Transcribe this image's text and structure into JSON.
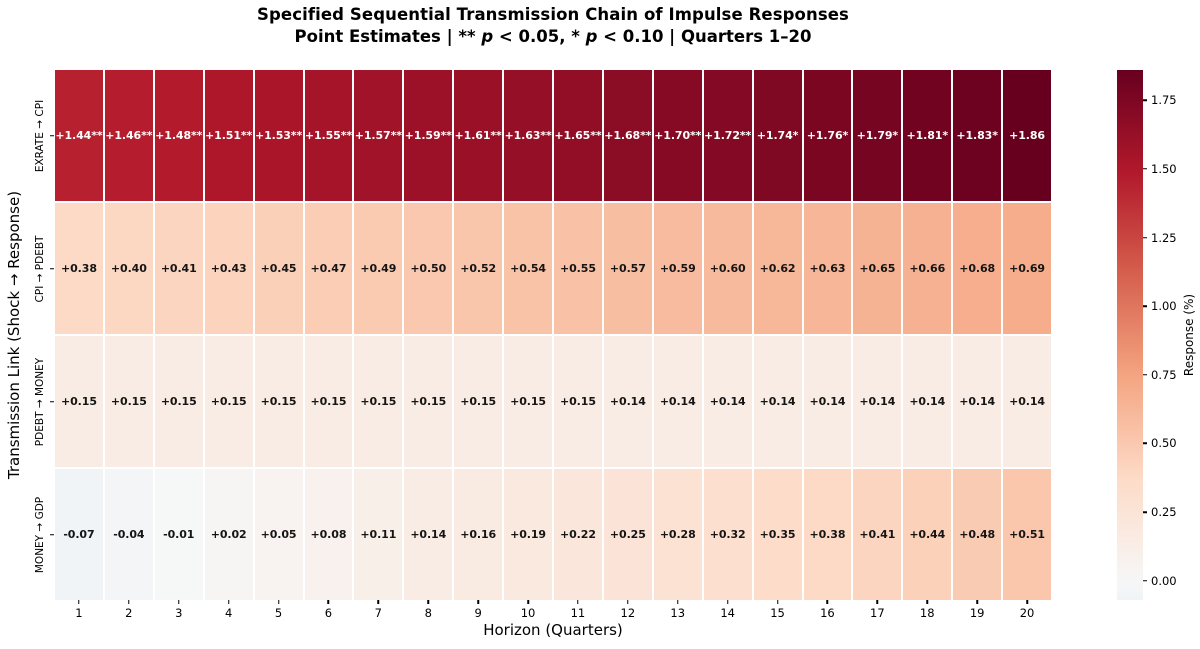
{
  "chart_data": {
    "type": "heatmap",
    "title": "Specified Sequential Transmission Chain of Impulse Responses",
    "subtitle_segments": [
      {
        "text": "Point Estimates | ** ",
        "italic": false
      },
      {
        "text": "p",
        "italic": true
      },
      {
        "text": " < 0.05, * ",
        "italic": false
      },
      {
        "text": "p",
        "italic": true
      },
      {
        "text": " < 0.10 | Quarters 1–20",
        "italic": false
      }
    ],
    "xlabel": "Horizon (Quarters)",
    "ylabel": "Transmission Link (Shock → Response)",
    "x_ticks": [
      "1",
      "2",
      "3",
      "4",
      "5",
      "6",
      "7",
      "8",
      "9",
      "10",
      "11",
      "12",
      "13",
      "14",
      "15",
      "16",
      "17",
      "18",
      "19",
      "20"
    ],
    "rows": [
      {
        "label": "EXRATE → CPI",
        "values": [
          1.44,
          1.46,
          1.48,
          1.51,
          1.53,
          1.55,
          1.57,
          1.59,
          1.61,
          1.63,
          1.65,
          1.68,
          1.7,
          1.72,
          1.74,
          1.76,
          1.79,
          1.81,
          1.83,
          1.86
        ],
        "cell_labels": [
          "+1.44**",
          "+1.46**",
          "+1.48**",
          "+1.51**",
          "+1.53**",
          "+1.55**",
          "+1.57**",
          "+1.59**",
          "+1.61**",
          "+1.63**",
          "+1.65**",
          "+1.68**",
          "+1.70**",
          "+1.72**",
          "+1.74*",
          "+1.76*",
          "+1.79*",
          "+1.81*",
          "+1.83*",
          "+1.86"
        ]
      },
      {
        "label": "CPI → PDEBT",
        "values": [
          0.38,
          0.4,
          0.41,
          0.43,
          0.45,
          0.47,
          0.49,
          0.5,
          0.52,
          0.54,
          0.55,
          0.57,
          0.59,
          0.6,
          0.62,
          0.63,
          0.65,
          0.66,
          0.68,
          0.69
        ],
        "cell_labels": [
          "+0.38",
          "+0.40",
          "+0.41",
          "+0.43",
          "+0.45",
          "+0.47",
          "+0.49",
          "+0.50",
          "+0.52",
          "+0.54",
          "+0.55",
          "+0.57",
          "+0.59",
          "+0.60",
          "+0.62",
          "+0.63",
          "+0.65",
          "+0.66",
          "+0.68",
          "+0.69"
        ]
      },
      {
        "label": "PDEBT → MONEY",
        "values": [
          0.15,
          0.15,
          0.15,
          0.15,
          0.15,
          0.15,
          0.15,
          0.15,
          0.15,
          0.15,
          0.15,
          0.14,
          0.14,
          0.14,
          0.14,
          0.14,
          0.14,
          0.14,
          0.14,
          0.14
        ],
        "cell_labels": [
          "+0.15",
          "+0.15",
          "+0.15",
          "+0.15",
          "+0.15",
          "+0.15",
          "+0.15",
          "+0.15",
          "+0.15",
          "+0.15",
          "+0.15",
          "+0.14",
          "+0.14",
          "+0.14",
          "+0.14",
          "+0.14",
          "+0.14",
          "+0.14",
          "+0.14",
          "+0.14"
        ]
      },
      {
        "label": "MONEY → GDP",
        "values": [
          -0.07,
          -0.04,
          -0.01,
          0.02,
          0.05,
          0.08,
          0.11,
          0.14,
          0.16,
          0.19,
          0.22,
          0.25,
          0.28,
          0.32,
          0.35,
          0.38,
          0.41,
          0.44,
          0.48,
          0.51
        ],
        "cell_labels": [
          "-0.07",
          "-0.04",
          "-0.01",
          "+0.02",
          "+0.05",
          "+0.08",
          "+0.11",
          "+0.14",
          "+0.16",
          "+0.19",
          "+0.22",
          "+0.25",
          "+0.28",
          "+0.32",
          "+0.35",
          "+0.38",
          "+0.41",
          "+0.44",
          "+0.48",
          "+0.51"
        ]
      }
    ],
    "colorbar": {
      "label": "Response (%)",
      "tick_labels": [
        "1.75",
        "1.50",
        "1.25",
        "1.00",
        "0.75",
        "0.50",
        "0.25",
        "0.00"
      ],
      "tick_values": [
        1.75,
        1.5,
        1.25,
        1.0,
        0.75,
        0.5,
        0.25,
        0.0
      ],
      "vmin": -0.07,
      "vmax": 1.86,
      "position": "right"
    },
    "color_scale": {
      "name": "RdBu_r",
      "center": 0,
      "half_range": 1.86,
      "stops": [
        "#053061",
        "#2166ac",
        "#4393c3",
        "#92c5de",
        "#d1e5f0",
        "#f7f7f7",
        "#fddbc7",
        "#f4a582",
        "#d6604d",
        "#b2182b",
        "#67001f"
      ],
      "label_light": "#ffffff",
      "label_dark": "#151515"
    },
    "grid": "white 2px separators between cells",
    "significance_legend": "** p < 0.05, * p < 0.10"
  }
}
